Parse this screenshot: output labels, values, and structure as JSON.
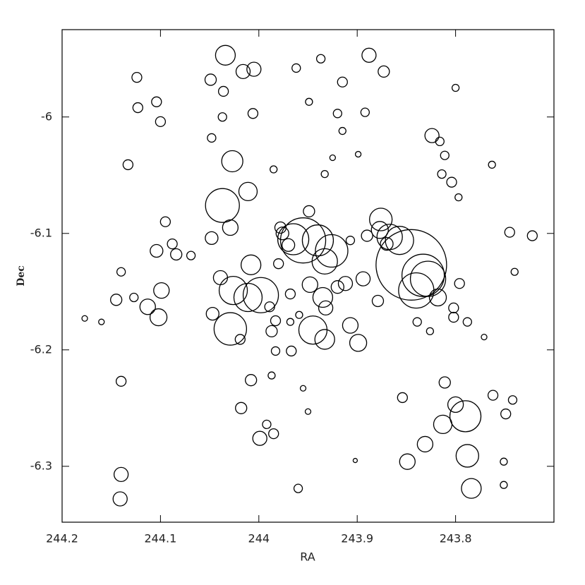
{
  "chart_data": {
    "type": "scatter",
    "xlabel": "RA",
    "ylabel": "Dec",
    "color": "#000000",
    "xlim": [
      244.2,
      243.7
    ],
    "ylim": [
      -6.348,
      -5.925
    ],
    "xticks": [
      244.2,
      244.1,
      244,
      243.9,
      243.8
    ],
    "yticks": [
      -6,
      -6.1,
      -6.2,
      -6.3
    ],
    "x": [
      244.034,
      244.016,
      244.005,
      244.049,
      244.036,
      244.124,
      244.123,
      244.104,
      244.1,
      244.133,
      244.037,
      244.048,
      244.027,
      244.011,
      244.037,
      244.029,
      244.048,
      244.095,
      244.104,
      244.088,
      244.084,
      244.069,
      244.039,
      244.026,
      244.008,
      244.011,
      243.998,
      244.029,
      244.019,
      244.047,
      244.099,
      244.113,
      244.102,
      244.145,
      244.127,
      244.14,
      244.14,
      244.14,
      244.141,
      244.177,
      244.16,
      244.006,
      244.018,
      244.008,
      243.999,
      243.992,
      243.985,
      243.987,
      243.983,
      243.967,
      243.96,
      243.962,
      243.937,
      243.915,
      243.888,
      243.873,
      243.892,
      243.8,
      243.824,
      243.816,
      243.811,
      243.814,
      243.804,
      243.797,
      243.763,
      243.745,
      243.722,
      243.74,
      243.796,
      243.788,
      243.771,
      243.876,
      243.845,
      243.833,
      243.84,
      243.818,
      243.867,
      243.857,
      243.955,
      243.965,
      243.94,
      243.926,
      243.933,
      243.948,
      243.935,
      243.932,
      243.945,
      243.933,
      243.92,
      243.912,
      243.907,
      243.899,
      243.894,
      243.879,
      243.839,
      243.826,
      243.802,
      243.802,
      243.811,
      243.8,
      243.813,
      243.79,
      243.788,
      243.784,
      243.831,
      243.849,
      243.854,
      243.762,
      243.742,
      243.749,
      243.751,
      243.751,
      243.933,
      243.92,
      243.915,
      243.925,
      243.899,
      243.949,
      243.89,
      243.907,
      243.987,
      243.983,
      243.949,
      243.989,
      243.968,
      243.902,
      243.95,
      243.955,
      243.978,
      243.976,
      243.97,
      243.98,
      243.968,
      243.959,
      243.877,
      243.87,
      243.828,
      243.985
    ],
    "y": [
      -5.947,
      -5.961,
      -5.959,
      -5.968,
      -5.978,
      -5.966,
      -5.992,
      -5.987,
      -6.004,
      -6.041,
      -6.0,
      -6.018,
      -6.038,
      -6.064,
      -6.076,
      -6.095,
      -6.104,
      -6.09,
      -6.115,
      -6.109,
      -6.118,
      -6.119,
      -6.138,
      -6.149,
      -6.127,
      -6.155,
      -6.153,
      -6.182,
      -6.191,
      -6.169,
      -6.149,
      -6.163,
      -6.172,
      -6.157,
      -6.155,
      -6.133,
      -6.227,
      -6.307,
      -6.328,
      -6.173,
      -6.176,
      -5.997,
      -6.25,
      -6.226,
      -6.276,
      -6.264,
      -6.272,
      -6.222,
      -6.201,
      -6.201,
      -6.319,
      -5.958,
      -5.95,
      -5.97,
      -5.947,
      -5.961,
      -5.996,
      -5.975,
      -6.016,
      -6.021,
      -6.033,
      -6.049,
      -6.056,
      -6.069,
      -6.041,
      -6.099,
      -6.102,
      -6.133,
      -6.143,
      -6.176,
      -6.189,
      -6.088,
      -6.127,
      -6.136,
      -6.149,
      -6.155,
      -6.103,
      -6.106,
      -6.106,
      -6.105,
      -6.106,
      -6.115,
      -6.124,
      -6.144,
      -6.155,
      -6.164,
      -6.183,
      -6.191,
      -6.146,
      -6.143,
      -6.179,
      -6.194,
      -6.139,
      -6.158,
      -6.176,
      -6.184,
      -6.172,
      -6.164,
      -6.228,
      -6.247,
      -6.264,
      -6.257,
      -6.291,
      -6.319,
      -6.281,
      -6.296,
      -6.241,
      -6.239,
      -6.243,
      -6.255,
      -6.296,
      -6.316,
      -6.049,
      -5.997,
      -6.012,
      -6.035,
      -6.032,
      -5.987,
      -6.102,
      -6.106,
      -6.184,
      -6.175,
      -6.081,
      -6.163,
      -6.176,
      -6.295,
      -6.253,
      -6.233,
      -6.095,
      -6.1,
      -6.11,
      -6.126,
      -6.152,
      -6.17,
      -6.097,
      -6.109,
      -6.139,
      -6.045
    ],
    "sizes": [
      14,
      10,
      10,
      8,
      7,
      7,
      7,
      7,
      7,
      7,
      6,
      6,
      15,
      13,
      24,
      11,
      9,
      7,
      9,
      7,
      8,
      6,
      10,
      20,
      14,
      20,
      25,
      23,
      7,
      9,
      11,
      11,
      12,
      8,
      6,
      6,
      7,
      10,
      10,
      4,
      4,
      7,
      8,
      8,
      10,
      6,
      7,
      5,
      6,
      7,
      6,
      6,
      6,
      7,
      10,
      8,
      6,
      5,
      10,
      6,
      6,
      6,
      7,
      5,
      5,
      7,
      7,
      5,
      7,
      6,
      4,
      16,
      50,
      30,
      25,
      12,
      18,
      20,
      32,
      22,
      22,
      23,
      18,
      11,
      14,
      10,
      20,
      14,
      9,
      10,
      11,
      12,
      10,
      8,
      6,
      5,
      7,
      7,
      8,
      11,
      13,
      22,
      16,
      14,
      11,
      11,
      7,
      7,
      6,
      7,
      5,
      5,
      5,
      6,
      5,
      4,
      4,
      5,
      8,
      6,
      8,
      7,
      8,
      7,
      5,
      3,
      4,
      4,
      8,
      9,
      9,
      7,
      7,
      5,
      12,
      9,
      25,
      5
    ]
  }
}
